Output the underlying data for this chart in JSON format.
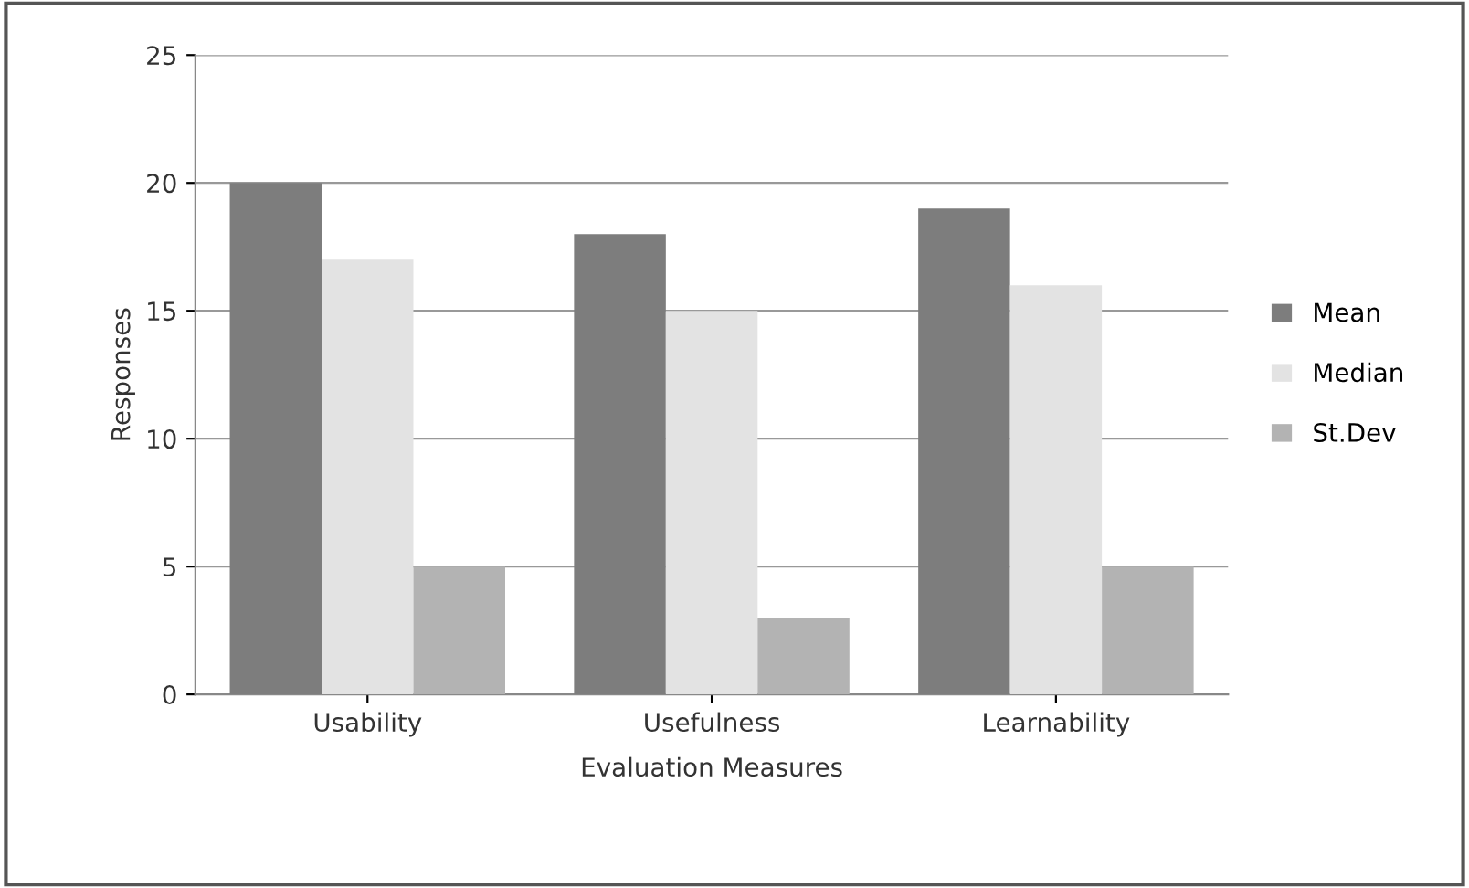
{
  "chart_data": {
    "type": "bar",
    "xlabel": "Evaluation Measures",
    "ylabel": "Responses",
    "categories": [
      "Usability",
      "Usefulness",
      "Learnability"
    ],
    "series": [
      {
        "name": "Mean",
        "color": "#7d7d7d",
        "values": [
          20,
          18,
          19
        ]
      },
      {
        "name": "Median",
        "color": "#e3e3e3",
        "values": [
          17,
          15,
          16
        ]
      },
      {
        "name": "St.Dev",
        "color": "#b3b3b3",
        "values": [
          5,
          3,
          5
        ]
      }
    ],
    "ylim": [
      0,
      25
    ],
    "yticks": [
      0,
      5,
      10,
      15,
      20,
      25
    ],
    "grid": "y",
    "legend": "right"
  }
}
